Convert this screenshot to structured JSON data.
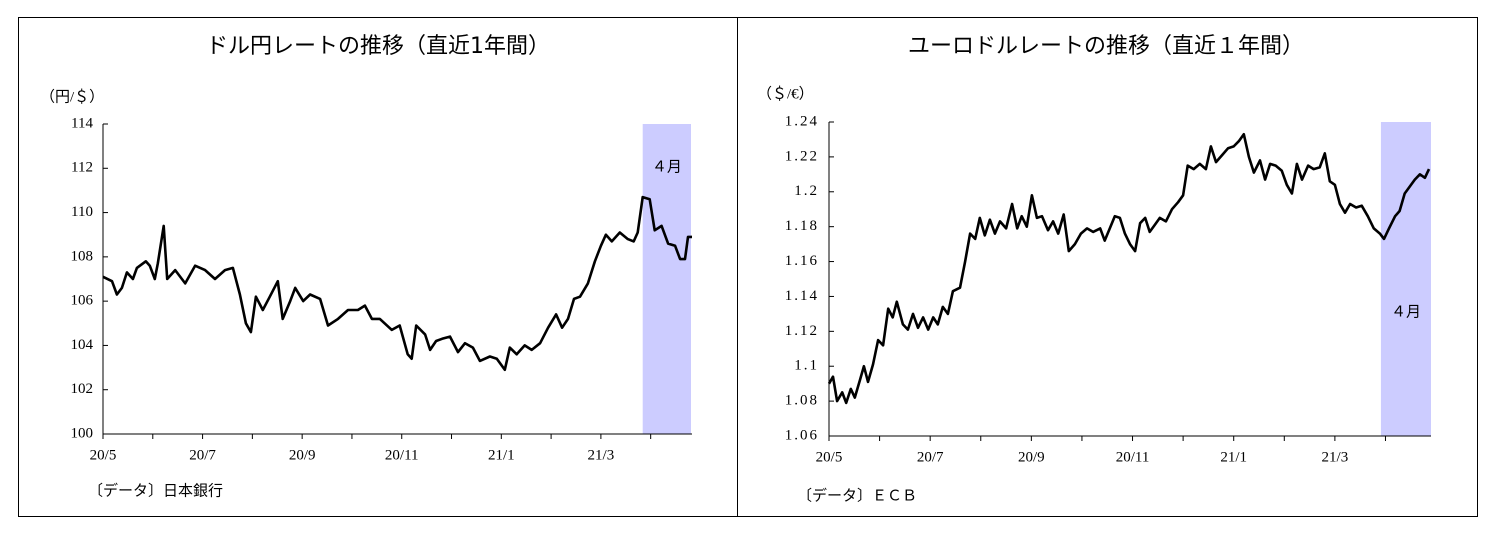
{
  "chart_data": [
    {
      "type": "line",
      "title": "ドル円レートの推移（直近1年間）",
      "y_unit_label": "（円/＄）",
      "source": "〔データ〕日本銀行",
      "x": [
        0,
        0.18,
        0.28,
        0.38,
        0.48,
        0.6,
        0.68,
        0.86,
        0.94,
        1.04,
        1.1,
        1.22,
        1.29,
        1.45,
        1.65,
        1.85,
        2.05,
        2.25,
        2.45,
        2.61,
        2.75,
        2.87,
        2.97,
        3.07,
        3.21,
        3.35,
        3.51,
        3.61,
        3.76,
        3.86,
        4.02,
        4.16,
        4.36,
        4.52,
        4.72,
        4.92,
        5.12,
        5.26,
        5.4,
        5.56,
        5.8,
        5.96,
        6.12,
        6.2,
        6.29,
        6.47,
        6.57,
        6.69,
        6.81,
        6.97,
        7.13,
        7.27,
        7.43,
        7.57,
        7.77,
        7.91,
        8.07,
        8.17,
        8.31,
        8.47,
        8.61,
        8.78,
        8.94,
        9.1,
        9.22,
        9.34,
        9.46,
        9.58,
        9.74,
        9.88,
        10.0,
        10.1,
        10.22,
        10.38,
        10.54,
        10.66,
        10.74,
        10.84,
        10.98,
        11.08,
        11.22,
        11.35,
        11.49,
        11.59,
        11.69,
        11.75,
        11.83
      ],
      "series": [
        {
          "color": "#000000",
          "values": [
            107.1,
            106.9,
            106.3,
            106.6,
            107.3,
            107.0,
            107.5,
            107.8,
            107.6,
            107.0,
            107.7,
            109.4,
            107.0,
            107.4,
            106.8,
            107.6,
            107.4,
            107.0,
            107.4,
            107.5,
            106.3,
            105.0,
            104.6,
            106.2,
            105.6,
            106.2,
            106.9,
            105.2,
            106.0,
            106.6,
            106.0,
            106.3,
            106.1,
            104.9,
            105.2,
            105.6,
            105.6,
            105.8,
            105.2,
            105.2,
            104.7,
            104.9,
            103.6,
            103.4,
            104.9,
            104.5,
            103.8,
            104.2,
            104.3,
            104.4,
            103.7,
            104.1,
            103.9,
            103.3,
            103.5,
            103.4,
            102.9,
            103.9,
            103.6,
            104.0,
            103.8,
            104.1,
            104.8,
            105.4,
            104.8,
            105.2,
            106.1,
            106.2,
            106.8,
            107.8,
            108.5,
            109.0,
            108.7,
            109.1,
            108.8,
            108.7,
            109.1,
            110.7,
            110.6,
            109.2,
            109.4,
            108.6,
            108.5,
            107.9,
            107.9,
            108.9,
            108.9
          ]
        }
      ],
      "xlim": [
        0,
        11.83
      ],
      "ylim": [
        100,
        114
      ],
      "yticks": [
        100,
        102,
        104,
        106,
        108,
        110,
        112,
        114
      ],
      "xticks": [
        {
          "value": 0,
          "label": "20/5"
        },
        {
          "value": 1,
          "label": null
        },
        {
          "value": 2,
          "label": "20/7"
        },
        {
          "value": 3,
          "label": null
        },
        {
          "value": 4,
          "label": "20/9"
        },
        {
          "value": 5,
          "label": null
        },
        {
          "value": 6,
          "label": "20/11"
        },
        {
          "value": 7,
          "label": null
        },
        {
          "value": 8,
          "label": "21/1"
        },
        {
          "value": 9,
          "label": null
        },
        {
          "value": 10,
          "label": "21/3"
        },
        {
          "value": 11,
          "label": null
        }
      ],
      "highlight": {
        "range": [
          10.84,
          11.81
        ],
        "label": "４月",
        "color": "#ccccff"
      }
    },
    {
      "type": "line",
      "title": "ユーロドルレートの推移（直近１年間）",
      "y_unit_label": "（＄/€）",
      "source": "〔データ〕ＥＣＢ",
      "x": [
        0,
        0.08,
        0.16,
        0.26,
        0.34,
        0.43,
        0.51,
        0.61,
        0.69,
        0.77,
        0.87,
        0.97,
        1.07,
        1.17,
        1.26,
        1.34,
        1.46,
        1.56,
        1.66,
        1.76,
        1.86,
        1.96,
        2.06,
        2.15,
        2.25,
        2.35,
        2.45,
        2.59,
        2.69,
        2.79,
        2.89,
        2.98,
        3.08,
        3.18,
        3.28,
        3.38,
        3.5,
        3.62,
        3.72,
        3.81,
        3.91,
        4.01,
        4.11,
        4.21,
        4.33,
        4.43,
        4.53,
        4.64,
        4.74,
        4.86,
        4.98,
        5.1,
        5.22,
        5.36,
        5.45,
        5.55,
        5.65,
        5.75,
        5.85,
        5.95,
        6.05,
        6.15,
        6.25,
        6.34,
        6.44,
        6.54,
        6.66,
        6.78,
        6.9,
        7.0,
        7.09,
        7.21,
        7.33,
        7.45,
        7.55,
        7.65,
        7.77,
        7.89,
        8.0,
        8.1,
        8.2,
        8.3,
        8.4,
        8.52,
        8.62,
        8.72,
        8.83,
        8.95,
        9.05,
        9.15,
        9.25,
        9.35,
        9.47,
        9.58,
        9.7,
        9.8,
        9.9,
        10.0,
        10.1,
        10.2,
        10.3,
        10.42,
        10.53,
        10.65,
        10.77,
        10.89,
        10.97,
        11.07,
        11.19,
        11.28,
        11.38,
        11.48,
        11.58,
        11.68,
        11.78,
        11.86
      ],
      "series": [
        {
          "color": "#000000",
          "values": [
            1.09,
            1.094,
            1.08,
            1.085,
            1.079,
            1.087,
            1.082,
            1.092,
            1.1,
            1.091,
            1.101,
            1.115,
            1.112,
            1.133,
            1.128,
            1.137,
            1.124,
            1.121,
            1.13,
            1.122,
            1.128,
            1.121,
            1.128,
            1.124,
            1.134,
            1.13,
            1.143,
            1.145,
            1.16,
            1.176,
            1.173,
            1.185,
            1.175,
            1.184,
            1.176,
            1.183,
            1.179,
            1.193,
            1.179,
            1.186,
            1.18,
            1.198,
            1.185,
            1.186,
            1.178,
            1.183,
            1.176,
            1.187,
            1.166,
            1.17,
            1.176,
            1.179,
            1.177,
            1.179,
            1.172,
            1.179,
            1.186,
            1.185,
            1.176,
            1.17,
            1.166,
            1.182,
            1.185,
            1.177,
            1.181,
            1.185,
            1.183,
            1.19,
            1.194,
            1.198,
            1.215,
            1.213,
            1.216,
            1.213,
            1.226,
            1.217,
            1.221,
            1.225,
            1.226,
            1.229,
            1.233,
            1.22,
            1.211,
            1.218,
            1.207,
            1.216,
            1.215,
            1.212,
            1.204,
            1.199,
            1.216,
            1.207,
            1.215,
            1.213,
            1.214,
            1.222,
            1.206,
            1.204,
            1.193,
            1.188,
            1.193,
            1.191,
            1.192,
            1.186,
            1.179,
            1.176,
            1.173,
            1.179,
            1.186,
            1.189,
            1.199,
            1.203,
            1.207,
            1.21,
            1.208,
            1.213
          ]
        }
      ],
      "xlim": [
        0,
        11.9
      ],
      "ylim": [
        1.06,
        1.24
      ],
      "yticks": [
        1.06,
        1.08,
        1.1,
        1.12,
        1.14,
        1.16,
        1.18,
        1.2,
        1.22,
        1.24
      ],
      "xticks": [
        {
          "value": 0,
          "label": "20/5"
        },
        {
          "value": 1,
          "label": null
        },
        {
          "value": 2,
          "label": "20/7"
        },
        {
          "value": 3,
          "label": null
        },
        {
          "value": 4,
          "label": "20/9"
        },
        {
          "value": 5,
          "label": null
        },
        {
          "value": 6,
          "label": "20/11"
        },
        {
          "value": 7,
          "label": null
        },
        {
          "value": 8,
          "label": "21/1"
        },
        {
          "value": 9,
          "label": null
        },
        {
          "value": 10,
          "label": "21/3"
        },
        {
          "value": 11,
          "label": null
        }
      ],
      "highlight": {
        "range": [
          10.91,
          11.9
        ],
        "label": "４月",
        "color": "#ccccff"
      }
    }
  ]
}
